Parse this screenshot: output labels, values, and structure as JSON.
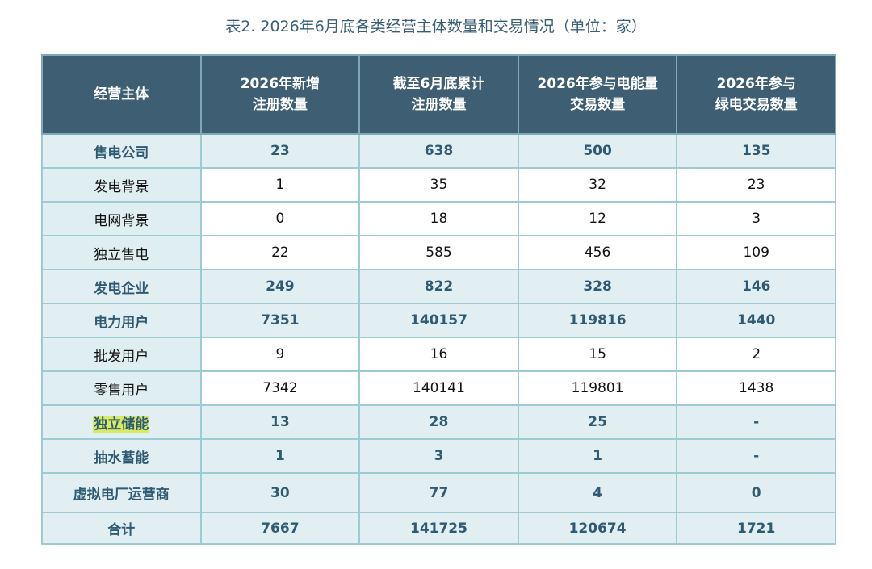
{
  "title": "表2. 2026年6月底各类经营主体数量和交易情况（单位：家）",
  "table": {
    "header": [
      "经营主体",
      "2026年新增\n注册数量",
      "截至6月底累计\n注册数量",
      "2026年参与电能量\n交易数量",
      "2026年参与\n绿电交易数量"
    ],
    "rows": [
      [
        "售电公司",
        23,
        638,
        500,
        135
      ],
      [
        "发电背景",
        1,
        35,
        32,
        23
      ],
      [
        "电网背景",
        0,
        18,
        12,
        3
      ],
      [
        "独立售电",
        22,
        585,
        456,
        109
      ],
      [
        "发电企业",
        249,
        822,
        328,
        146
      ],
      [
        "电力用户",
        7351,
        140157,
        119816,
        1440
      ],
      [
        "批发用户",
        9,
        16,
        15,
        2
      ],
      [
        "零售用户",
        7342,
        140141,
        119801,
        1438
      ],
      [
        "独立储能",
        13,
        28,
        25,
        "-"
      ],
      [
        "抽水蓄能",
        1,
        3,
        1,
        "-"
      ],
      [
        "虚拟电厂运营商",
        30,
        77,
        4,
        0
      ],
      [
        "合计",
        7667,
        141725,
        120674,
        1721
      ]
    ]
  }
}
